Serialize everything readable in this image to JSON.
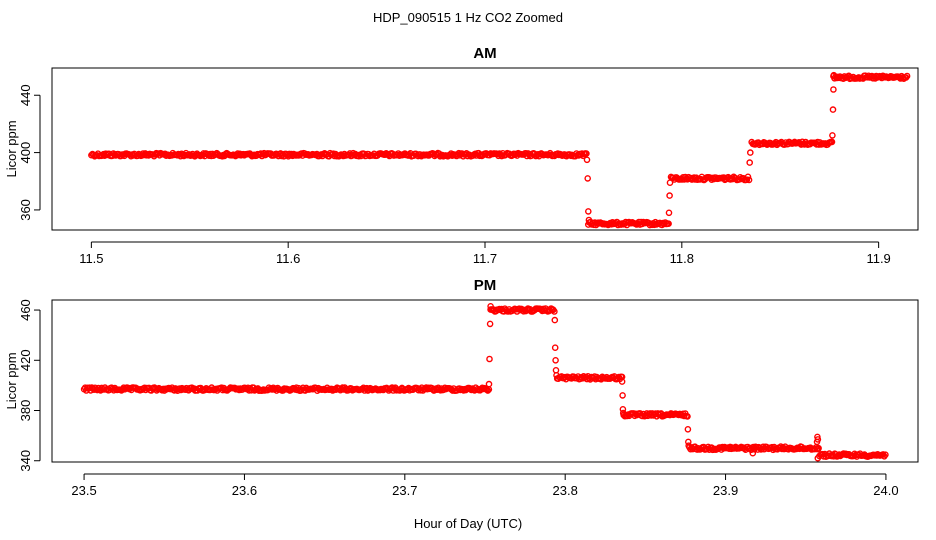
{
  "figure": {
    "title": "HDP_090515  1 Hz CO2 Zoomed",
    "xlabel": "Hour of Day (UTC)"
  },
  "chart_data": [
    {
      "type": "scatter",
      "title": "AM",
      "xlabel": "",
      "ylabel": "Licor ppm",
      "xlim": [
        11.48,
        11.92
      ],
      "ylim": [
        346,
        459
      ],
      "xticks": [
        "11.5",
        "11.6",
        "11.7",
        "11.8",
        "11.9"
      ],
      "xtick_values": [
        11.5,
        11.6,
        11.7,
        11.8,
        11.9
      ],
      "yticks": [
        "360",
        "400",
        "440"
      ],
      "ytick_values": [
        360,
        400,
        440
      ],
      "grid": false,
      "color": "#ff0000",
      "marker": "open-circle",
      "segments": [
        {
          "x": [
            11.5,
            11.752
          ],
          "y": 398.5
        },
        {
          "x": [
            11.7525,
            11.7935
          ],
          "y": 350.5
        },
        {
          "x": [
            11.7945,
            11.8345
          ],
          "y": 382
        },
        {
          "x": [
            11.8355,
            11.8765
          ],
          "y": 406.5
        },
        {
          "x": [
            11.877,
            11.9145
          ],
          "y": 452.5
        }
      ],
      "transitions": [
        {
          "x": 11.7518,
          "y": 395
        },
        {
          "x": 11.7522,
          "y": 382
        },
        {
          "x": 11.7525,
          "y": 359
        },
        {
          "x": 11.7528,
          "y": 353
        },
        {
          "x": 11.7935,
          "y": 358
        },
        {
          "x": 11.7938,
          "y": 370
        },
        {
          "x": 11.794,
          "y": 379
        },
        {
          "x": 11.8345,
          "y": 393
        },
        {
          "x": 11.8348,
          "y": 400
        },
        {
          "x": 11.8765,
          "y": 412
        },
        {
          "x": 11.8768,
          "y": 430
        },
        {
          "x": 11.877,
          "y": 444
        },
        {
          "x": 11.8772,
          "y": 454
        }
      ]
    },
    {
      "type": "scatter",
      "title": "PM",
      "xlabel": "",
      "ylabel": "Licor ppm",
      "xlim": [
        23.48,
        24.02
      ],
      "ylim": [
        339,
        468
      ],
      "xticks": [
        "23.5",
        "23.6",
        "23.7",
        "23.8",
        "23.9",
        "24.0"
      ],
      "xtick_values": [
        23.5,
        23.6,
        23.7,
        23.8,
        23.9,
        24.0
      ],
      "yticks": [
        "340",
        "380",
        "420",
        "460"
      ],
      "ytick_values": [
        340,
        380,
        420,
        460
      ],
      "grid": false,
      "color": "#ff0000",
      "marker": "open-circle",
      "segments": [
        {
          "x": [
            23.5,
            23.753
          ],
          "y": 397
        },
        {
          "x": [
            23.7535,
            23.7935
          ],
          "y": 460
        },
        {
          "x": [
            23.795,
            23.8355
          ],
          "y": 406
        },
        {
          "x": [
            23.8365,
            23.8765
          ],
          "y": 376.5
        },
        {
          "x": [
            23.8775,
            23.958
          ],
          "y": 350
        },
        {
          "x": [
            23.9585,
            24.0
          ],
          "y": 344.5
        }
      ],
      "transitions": [
        {
          "x": 23.7525,
          "y": 401
        },
        {
          "x": 23.7528,
          "y": 421
        },
        {
          "x": 23.7532,
          "y": 449
        },
        {
          "x": 23.7535,
          "y": 463
        },
        {
          "x": 23.7935,
          "y": 452
        },
        {
          "x": 23.7938,
          "y": 430
        },
        {
          "x": 23.794,
          "y": 420
        },
        {
          "x": 23.7943,
          "y": 412
        },
        {
          "x": 23.7946,
          "y": 408
        },
        {
          "x": 23.8355,
          "y": 403
        },
        {
          "x": 23.8358,
          "y": 392
        },
        {
          "x": 23.836,
          "y": 381
        },
        {
          "x": 23.8362,
          "y": 378
        },
        {
          "x": 23.8765,
          "y": 365
        },
        {
          "x": 23.8768,
          "y": 355
        },
        {
          "x": 23.877,
          "y": 352
        },
        {
          "x": 23.917,
          "y": 346
        },
        {
          "x": 23.957,
          "y": 355
        },
        {
          "x": 23.9573,
          "y": 359
        },
        {
          "x": 23.9576,
          "y": 357
        },
        {
          "x": 23.958,
          "y": 350
        },
        {
          "x": 23.9575,
          "y": 342
        }
      ]
    }
  ]
}
